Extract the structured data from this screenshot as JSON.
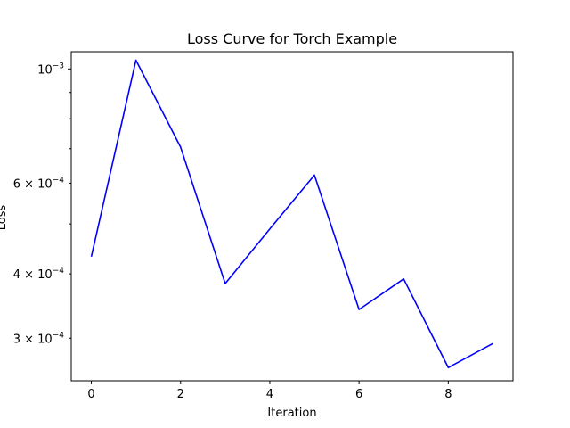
{
  "chart_data": {
    "type": "line",
    "title": "Loss Curve for Torch Example",
    "xlabel": "Iteration",
    "ylabel": "Loss",
    "yscale": "log",
    "grid": false,
    "legend": "none",
    "xlim": [
      -0.45,
      9.45
    ],
    "ylim": [
      0.000248,
      0.00108
    ],
    "x_ticks": [
      0,
      2,
      4,
      6,
      8
    ],
    "x_tick_labels": [
      "0",
      "2",
      "4",
      "6",
      "8"
    ],
    "y_major_ticks": [
      0.001
    ],
    "y_major_tick_labels": [
      "10",
      "−3"
    ],
    "y_minor_ticks": [
      0.0003,
      0.0004,
      0.0005,
      0.0006,
      0.0007,
      0.0008,
      0.0009
    ],
    "y_labeled_minor_ticks": [
      {
        "value": 0.0006,
        "mantissa": "6",
        "exponent": "−4"
      },
      {
        "value": 0.0004,
        "mantissa": "4",
        "exponent": "−4"
      },
      {
        "value": 0.0003,
        "mantissa": "3",
        "exponent": "−4"
      }
    ],
    "series": [
      {
        "color": "#0000ff",
        "x": [
          0,
          1,
          2,
          3,
          4,
          5,
          6,
          7,
          8,
          9
        ],
        "y": [
          0.000432,
          0.00104,
          0.000705,
          0.000383,
          0.000489,
          0.000622,
          0.000341,
          0.000391,
          0.000263,
          0.000293
        ]
      }
    ]
  }
}
